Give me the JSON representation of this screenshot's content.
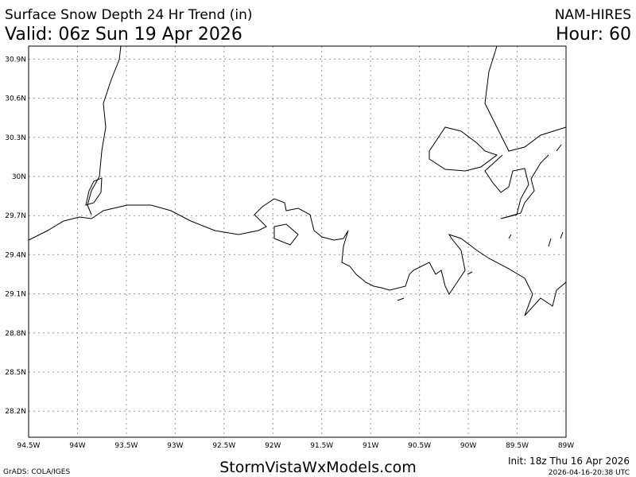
{
  "header": {
    "title": "Surface Snow Depth 24 Hr Trend (in)",
    "valid": "Valid: 06z Sun 19 Apr 2026",
    "model": "NAM-HIRES",
    "hour": "Hour: 60"
  },
  "map": {
    "xlim": [
      -94.5,
      -89
    ],
    "ylim": [
      28,
      31
    ],
    "xticks": [
      {
        "value": -94.5,
        "label": "94.5W"
      },
      {
        "value": -94,
        "label": "94W"
      },
      {
        "value": -93.5,
        "label": "93.5W"
      },
      {
        "value": -93,
        "label": "93W"
      },
      {
        "value": -92.5,
        "label": "92.5W"
      },
      {
        "value": -92,
        "label": "92W"
      },
      {
        "value": -91.5,
        "label": "91.5W"
      },
      {
        "value": -91,
        "label": "91W"
      },
      {
        "value": -90.5,
        "label": "90.5W"
      },
      {
        "value": -90,
        "label": "90W"
      },
      {
        "value": -89.5,
        "label": "89.5W"
      },
      {
        "value": -89,
        "label": "89W"
      }
    ],
    "yticks": [
      {
        "value": 30.9,
        "label": "30.9N"
      },
      {
        "value": 30.6,
        "label": "30.6N"
      },
      {
        "value": 30.3,
        "label": "30.3N"
      },
      {
        "value": 30,
        "label": "30N"
      },
      {
        "value": 29.7,
        "label": "29.7N"
      },
      {
        "value": 29.4,
        "label": "29.4N"
      },
      {
        "value": 29.1,
        "label": "29.1N"
      },
      {
        "value": 28.8,
        "label": "28.8N"
      },
      {
        "value": 28.5,
        "label": "28.5N"
      },
      {
        "value": 28.2,
        "label": "28.2N"
      }
    ]
  },
  "footer": {
    "grads": "GrADS: COLA/IGES",
    "site": "StormVistaWxModels.com",
    "init": "Init: 18z Thu 16 Apr 2026",
    "stamp": "2026-04-16-20:38 UTC"
  }
}
